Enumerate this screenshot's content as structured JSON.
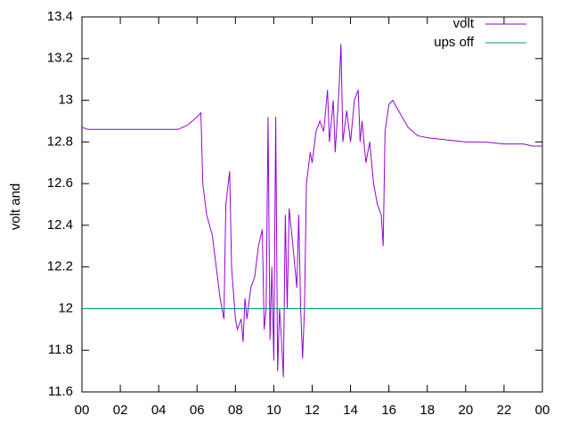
{
  "chart_data": {
    "type": "line",
    "ylabel": "volt and",
    "xlim": [
      0,
      24
    ],
    "xticks": [
      {
        "value": 0,
        "label": "00"
      },
      {
        "value": 2,
        "label": "02"
      },
      {
        "value": 4,
        "label": "04"
      },
      {
        "value": 6,
        "label": "06"
      },
      {
        "value": 8,
        "label": "08"
      },
      10,
      12,
      14,
      16,
      18,
      20,
      22,
      {
        "value": 24,
        "label": "00"
      }
    ],
    "ylim": [
      11.6,
      13.4
    ],
    "yticks": [
      11.6,
      11.8,
      12,
      12.2,
      12.4,
      12.6,
      12.8,
      13,
      13.2,
      13.4
    ],
    "legend": "top-right",
    "series": [
      {
        "name": "volt",
        "color": "#9400d3",
        "x": [
          0,
          0.3,
          5,
          5.5,
          6,
          6.2,
          6.3,
          6.5,
          6.8,
          7,
          7.2,
          7.4,
          7.5,
          7.7,
          7.8,
          8,
          8.1,
          8.3,
          8.4,
          8.5,
          8.6,
          8.8,
          9,
          9.2,
          9.4,
          9.5,
          9.6,
          9.7,
          9.8,
          9.9,
          10,
          10.1,
          10.2,
          10.3,
          10.4,
          10.5,
          10.6,
          10.7,
          10.8,
          11,
          11.2,
          11.3,
          11.4,
          11.5,
          11.6,
          11.7,
          11.9,
          12,
          12.2,
          12.4,
          12.6,
          12.8,
          12.9,
          13.1,
          13.2,
          13.4,
          13.5,
          13.6,
          13.8,
          14,
          14.2,
          14.4,
          14.5,
          14.6,
          14.8,
          15,
          15.2,
          15.4,
          15.6,
          15.7,
          15.8,
          16,
          16.2,
          16.5,
          17,
          17.5,
          18,
          19,
          20,
          21,
          22,
          23,
          23.5,
          24
        ],
        "values": [
          12.87,
          12.86,
          12.86,
          12.88,
          12.92,
          12.94,
          12.6,
          12.45,
          12.35,
          12.2,
          12.05,
          11.95,
          12.5,
          12.66,
          12.2,
          11.95,
          11.9,
          11.95,
          11.84,
          12.05,
          11.95,
          12.1,
          12.15,
          12.3,
          12.38,
          11.9,
          12.0,
          12.92,
          11.85,
          12.2,
          11.75,
          12.92,
          11.7,
          12.0,
          11.85,
          11.67,
          12.45,
          12.0,
          12.48,
          12.3,
          12.1,
          12.45,
          12.0,
          11.76,
          12.0,
          12.6,
          12.75,
          12.7,
          12.85,
          12.9,
          12.85,
          13.05,
          12.8,
          13.0,
          12.75,
          13.05,
          13.27,
          12.8,
          12.95,
          12.8,
          13.0,
          13.05,
          12.8,
          12.9,
          12.7,
          12.8,
          12.6,
          12.5,
          12.45,
          12.3,
          12.85,
          12.98,
          13.0,
          12.95,
          12.87,
          12.83,
          12.82,
          12.81,
          12.8,
          12.8,
          12.79,
          12.79,
          12.78,
          12.78
        ]
      },
      {
        "name": "ups off",
        "color": "#009e73",
        "x": [
          0,
          24
        ],
        "values": [
          12,
          12
        ]
      }
    ]
  }
}
